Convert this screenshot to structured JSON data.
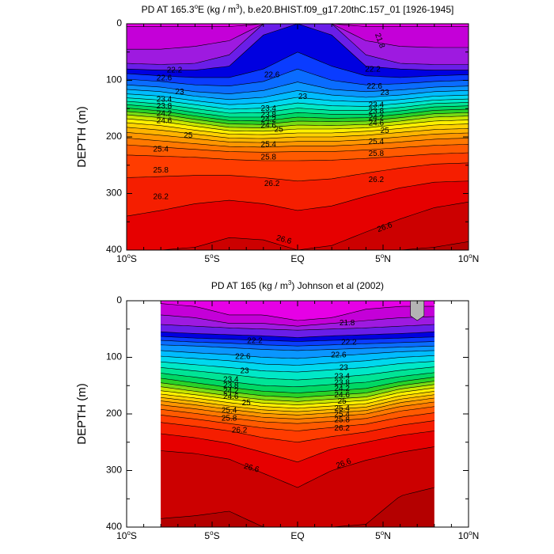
{
  "colors": {
    "levels": [
      21.8,
      22.0,
      22.2,
      22.4,
      22.6,
      22.8,
      23.0,
      23.2,
      23.4,
      23.6,
      23.8,
      24.0,
      24.2,
      24.4,
      24.6,
      24.8,
      25.0,
      25.2,
      25.4,
      25.6,
      25.8,
      26.0,
      26.2,
      26.4,
      26.6,
      26.8
    ],
    "palette": [
      "#e600e6",
      "#c400d8",
      "#9e1ae0",
      "#6a1ee8",
      "#0000e0",
      "#0a3cff",
      "#0a6cff",
      "#0a96ff",
      "#00bcff",
      "#00d8ee",
      "#00e8c8",
      "#00e496",
      "#00d864",
      "#28d228",
      "#78dc14",
      "#c8e600",
      "#fff000",
      "#ffd200",
      "#ffb400",
      "#ff9600",
      "#ff7800",
      "#ff5a00",
      "#ff3c00",
      "#f51e00",
      "#e60000",
      "#cc0000",
      "#b40000"
    ],
    "missing": "#b4b4b4"
  },
  "chart_data": [
    {
      "type": "contour",
      "title": "PD AT 165.3°E (kg / m³), b.e20.BHIST.f09_g17.20thC.157_01 [1926-1945]",
      "title_parts": {
        "pre": "PD AT 165.3",
        "deg": "o",
        "post": "E (kg / m",
        "exp": "3",
        "tail": "), b.e20.BHIST.f09_g17.20thC.157_01 [1926-1945]"
      },
      "xlabel": "",
      "ylabel": "DEPTH (m)",
      "xlim": [
        -10,
        10
      ],
      "ylim": [
        400,
        0
      ],
      "x_data_range": [
        -10,
        10
      ],
      "x_ticks": [
        {
          "value": -10,
          "num": "10",
          "hemi": "S"
        },
        {
          "value": -5,
          "num": "5",
          "hemi": "S"
        },
        {
          "value": 0,
          "num": "EQ",
          "hemi": ""
        },
        {
          "value": 5,
          "num": "5",
          "hemi": "N"
        },
        {
          "value": 10,
          "num": "10",
          "hemi": "N"
        }
      ],
      "y_ticks": [
        0,
        100,
        200,
        300,
        400
      ],
      "contour_depths_m": {
        "x": [
          -10,
          -8,
          -6,
          -4,
          -2,
          0,
          2,
          4,
          6,
          8,
          10
        ],
        "21.8": [
          5,
          5,
          5,
          5,
          0,
          0,
          0,
          5,
          5,
          5,
          5
        ],
        "22.0": [
          45,
          45,
          40,
          30,
          0,
          0,
          0,
          30,
          40,
          42,
          42
        ],
        "22.2": [
          70,
          72,
          70,
          55,
          0,
          0,
          0,
          55,
          70,
          72,
          72
        ],
        "22.4": [
          80,
          82,
          82,
          75,
          20,
          0,
          20,
          75,
          80,
          82,
          82
        ],
        "22.6": [
          88,
          92,
          95,
          95,
          80,
          50,
          75,
          92,
          95,
          92,
          90
        ],
        "22.8": [
          98,
          102,
          108,
          110,
          102,
          80,
          100,
          108,
          106,
          102,
          100
        ],
        "23.0": [
          108,
          112,
          120,
          124,
          118,
          103,
          116,
          120,
          117,
          112,
          110
        ],
        "23.2": [
          116,
          120,
          128,
          134,
          130,
          118,
          126,
          130,
          126,
          120,
          118
        ],
        "23.4": [
          124,
          128,
          136,
          143,
          140,
          130,
          136,
          138,
          134,
          128,
          126
        ],
        "23.6": [
          131,
          135,
          143,
          151,
          149,
          140,
          145,
          146,
          141,
          135,
          133
        ],
        "23.8": [
          137,
          142,
          150,
          158,
          157,
          149,
          153,
          153,
          148,
          141,
          139
        ],
        "24.0": [
          143,
          148,
          157,
          165,
          165,
          157,
          160,
          160,
          154,
          147,
          145
        ],
        "24.2": [
          149,
          154,
          163,
          171,
          172,
          165,
          167,
          166,
          160,
          153,
          151
        ],
        "24.4": [
          155,
          160,
          169,
          177,
          178,
          172,
          173,
          172,
          166,
          159,
          157
        ],
        "24.6": [
          161,
          166,
          175,
          183,
          184,
          179,
          180,
          178,
          172,
          165,
          163
        ],
        "24.8": [
          168,
          173,
          181,
          189,
          190,
          186,
          186,
          184,
          178,
          172,
          170
        ],
        "25.0": [
          175,
          180,
          188,
          195,
          196,
          193,
          193,
          190,
          185,
          179,
          177
        ],
        "25.2": [
          183,
          188,
          195,
          202,
          203,
          200,
          200,
          197,
          192,
          187,
          185
        ],
        "25.4": [
          192,
          197,
          203,
          209,
          210,
          208,
          208,
          205,
          200,
          195,
          193
        ],
        "25.6": [
          202,
          207,
          212,
          217,
          218,
          216,
          216,
          213,
          209,
          204,
          202
        ],
        "25.8": [
          214,
          218,
          222,
          226,
          227,
          226,
          226,
          223,
          219,
          215,
          213
        ],
        "26.0": [
          232,
          234,
          236,
          240,
          242,
          242,
          241,
          238,
          234,
          230,
          228
        ],
        "26.2": [
          272,
          270,
          268,
          268,
          272,
          278,
          274,
          264,
          255,
          248,
          246
        ],
        "26.4": [
          340,
          330,
          318,
          312,
          318,
          330,
          322,
          305,
          290,
          280,
          278
        ],
        "26.6": [
          400,
          400,
          395,
          378,
          382,
          400,
          392,
          368,
          345,
          325,
          315
        ],
        "26.8": [
          400,
          400,
          400,
          400,
          400,
          400,
          400,
          400,
          400,
          395,
          385
        ]
      },
      "missing_patch": null,
      "contour_labels": [
        {
          "text": "21.8",
          "x": 4.8,
          "y": 30,
          "rot": 70
        },
        {
          "text": "22.2",
          "x": -7.2,
          "y": 82
        },
        {
          "text": "22.6",
          "x": -7.8,
          "y": 96
        },
        {
          "text": "22.2",
          "x": 4.4,
          "y": 81
        },
        {
          "text": "22.6",
          "x": -1.5,
          "y": 91
        },
        {
          "text": "22.6",
          "x": 4.5,
          "y": 111
        },
        {
          "text": "23",
          "x": -6.9,
          "y": 121
        },
        {
          "text": "23",
          "x": 0.3,
          "y": 129
        },
        {
          "text": "23",
          "x": 5.1,
          "y": 122
        },
        {
          "text": "23.4",
          "x": -7.8,
          "y": 134
        },
        {
          "text": "23.8",
          "x": -7.8,
          "y": 146
        },
        {
          "text": "24.2",
          "x": -7.8,
          "y": 159
        },
        {
          "text": "24.6",
          "x": -7.8,
          "y": 172
        },
        {
          "text": "23.4",
          "x": -1.7,
          "y": 150
        },
        {
          "text": "23.8",
          "x": -1.7,
          "y": 161
        },
        {
          "text": "24.2",
          "x": -1.7,
          "y": 170
        },
        {
          "text": "24.6",
          "x": -1.7,
          "y": 180
        },
        {
          "text": "25",
          "x": -1.1,
          "y": 187
        },
        {
          "text": "23.4",
          "x": 4.6,
          "y": 144
        },
        {
          "text": "23.8",
          "x": 4.6,
          "y": 155
        },
        {
          "text": "24.2",
          "x": 4.6,
          "y": 166
        },
        {
          "text": "24.6",
          "x": 4.6,
          "y": 176
        },
        {
          "text": "25",
          "x": 5.1,
          "y": 189
        },
        {
          "text": "25",
          "x": -6.4,
          "y": 198
        },
        {
          "text": "25.4",
          "x": -1.7,
          "y": 214
        },
        {
          "text": "25.4",
          "x": 4.6,
          "y": 209
        },
        {
          "text": "25.4",
          "x": -8.0,
          "y": 222
        },
        {
          "text": "25.8",
          "x": -1.7,
          "y": 236
        },
        {
          "text": "25.8",
          "x": 4.6,
          "y": 230
        },
        {
          "text": "25.8",
          "x": -8.0,
          "y": 259
        },
        {
          "text": "26.2",
          "x": -1.5,
          "y": 283
        },
        {
          "text": "26.2",
          "x": 4.6,
          "y": 276
        },
        {
          "text": "26.2",
          "x": -8.0,
          "y": 306
        },
        {
          "text": "26.6",
          "x": -0.8,
          "y": 382,
          "rot": 15
        },
        {
          "text": "26.6",
          "x": 5.1,
          "y": 360,
          "rot": -20
        }
      ]
    },
    {
      "type": "contour",
      "title": "PD AT 165 (kg / m³) Johnson et al (2002)",
      "title_parts": {
        "pre": "PD AT 165 (kg / m",
        "deg": "",
        "post": "",
        "exp": "3",
        "tail": ") Johnson et al (2002)"
      },
      "xlabel": "",
      "ylabel": "DEPTH (m)",
      "xlim": [
        -10,
        10
      ],
      "ylim": [
        400,
        0
      ],
      "x_data_range": [
        -8,
        8
      ],
      "x_ticks": [
        {
          "value": -10,
          "num": "10",
          "hemi": "S"
        },
        {
          "value": -5,
          "num": "5",
          "hemi": "S"
        },
        {
          "value": 0,
          "num": "EQ",
          "hemi": ""
        },
        {
          "value": 5,
          "num": "5",
          "hemi": "N"
        },
        {
          "value": 10,
          "num": "10",
          "hemi": "N"
        }
      ],
      "y_ticks": [
        0,
        100,
        200,
        300,
        400
      ],
      "contour_depths_m": {
        "x": [
          -8,
          -6,
          -4,
          -2,
          0,
          2,
          4,
          6,
          8
        ],
        "21.8": [
          5,
          10,
          25,
          25,
          35,
          30,
          15,
          10,
          10
        ],
        "22.0": [
          25,
          30,
          40,
          40,
          45,
          40,
          35,
          30,
          28
        ],
        "22.2": [
          42,
          45,
          48,
          50,
          52,
          50,
          48,
          45,
          42
        ],
        "22.4": [
          55,
          58,
          60,
          62,
          65,
          62,
          60,
          58,
          55
        ],
        "22.6": [
          63,
          66,
          68,
          70,
          72,
          70,
          68,
          66,
          64
        ],
        "22.8": [
          70,
          73,
          75,
          78,
          80,
          78,
          76,
          74,
          72
        ],
        "23.0": [
          78,
          80,
          83,
          86,
          88,
          86,
          84,
          82,
          80
        ],
        "23.2": [
          88,
          92,
          95,
          100,
          102,
          98,
          94,
          90,
          88
        ],
        "23.4": [
          98,
          102,
          106,
          112,
          114,
          110,
          106,
          100,
          97
        ],
        "23.6": [
          108,
          113,
          118,
          124,
          126,
          122,
          118,
          111,
          107
        ],
        "23.8": [
          118,
          124,
          130,
          137,
          140,
          136,
          131,
          123,
          117
        ],
        "24.0": [
          128,
          135,
          143,
          150,
          152,
          148,
          144,
          134,
          127
        ],
        "24.2": [
          137,
          145,
          153,
          160,
          163,
          159,
          155,
          143,
          135
        ],
        "24.4": [
          145,
          153,
          161,
          168,
          171,
          167,
          163,
          150,
          142
        ],
        "24.6": [
          152,
          160,
          168,
          175,
          178,
          174,
          170,
          156,
          148
        ],
        "24.8": [
          159,
          166,
          174,
          181,
          184,
          180,
          176,
          162,
          154
        ],
        "25.0": [
          165,
          172,
          180,
          187,
          190,
          186,
          182,
          168,
          160
        ],
        "25.2": [
          171,
          178,
          186,
          193,
          196,
          192,
          188,
          174,
          166
        ],
        "25.4": [
          177,
          184,
          192,
          199,
          202,
          198,
          194,
          180,
          172
        ],
        "25.6": [
          184,
          191,
          199,
          206,
          209,
          205,
          200,
          187,
          179
        ],
        "25.8": [
          192,
          199,
          207,
          214,
          217,
          213,
          208,
          195,
          187
        ],
        "26.0": [
          202,
          209,
          217,
          225,
          230,
          224,
          218,
          206,
          198
        ],
        "26.2": [
          215,
          222,
          230,
          242,
          250,
          240,
          232,
          220,
          212
        ],
        "26.4": [
          235,
          242,
          252,
          268,
          285,
          262,
          250,
          238,
          230
        ],
        "26.6": [
          265,
          270,
          280,
          305,
          330,
          300,
          282,
          268,
          258
        ],
        "26.8": [
          385,
          380,
          372,
          400,
          400,
          400,
          395,
          345,
          330
        ]
      },
      "missing_patch": {
        "x": [
          6.6,
          7.4
        ],
        "y": [
          0,
          35
        ]
      },
      "contour_labels": [
        {
          "text": "21.8",
          "x": 2.9,
          "y": 40
        },
        {
          "text": "22.2",
          "x": -2.5,
          "y": 71
        },
        {
          "text": "22.2",
          "x": 3.0,
          "y": 74
        },
        {
          "text": "22.6",
          "x": -3.2,
          "y": 99
        },
        {
          "text": "22.6",
          "x": 2.4,
          "y": 96
        },
        {
          "text": "23",
          "x": -3.1,
          "y": 124
        },
        {
          "text": "23",
          "x": 2.7,
          "y": 119
        },
        {
          "text": "23.4",
          "x": -3.9,
          "y": 140
        },
        {
          "text": "23.8",
          "x": -3.9,
          "y": 150
        },
        {
          "text": "24.2",
          "x": -3.9,
          "y": 160
        },
        {
          "text": "24.6",
          "x": -3.9,
          "y": 170
        },
        {
          "text": "25",
          "x": -3.0,
          "y": 181
        },
        {
          "text": "25.4",
          "x": -4.0,
          "y": 194
        },
        {
          "text": "25.8",
          "x": -4.0,
          "y": 208
        },
        {
          "text": "26.2",
          "x": -3.4,
          "y": 229
        },
        {
          "text": "23.4",
          "x": 2.6,
          "y": 134
        },
        {
          "text": "23.8",
          "x": 2.6,
          "y": 145
        },
        {
          "text": "24.2",
          "x": 2.6,
          "y": 156
        },
        {
          "text": "24.6",
          "x": 2.6,
          "y": 167
        },
        {
          "text": "25",
          "x": 2.6,
          "y": 178
        },
        {
          "text": "25.4",
          "x": 2.6,
          "y": 191
        },
        {
          "text": "25.4",
          "x": 2.6,
          "y": 201
        },
        {
          "text": "25.8",
          "x": 2.6,
          "y": 211
        },
        {
          "text": "26.2",
          "x": 2.6,
          "y": 226
        },
        {
          "text": "26.6",
          "x": -2.7,
          "y": 296,
          "rot": 15
        },
        {
          "text": "26.6",
          "x": 2.7,
          "y": 288,
          "rot": -20
        }
      ]
    }
  ]
}
